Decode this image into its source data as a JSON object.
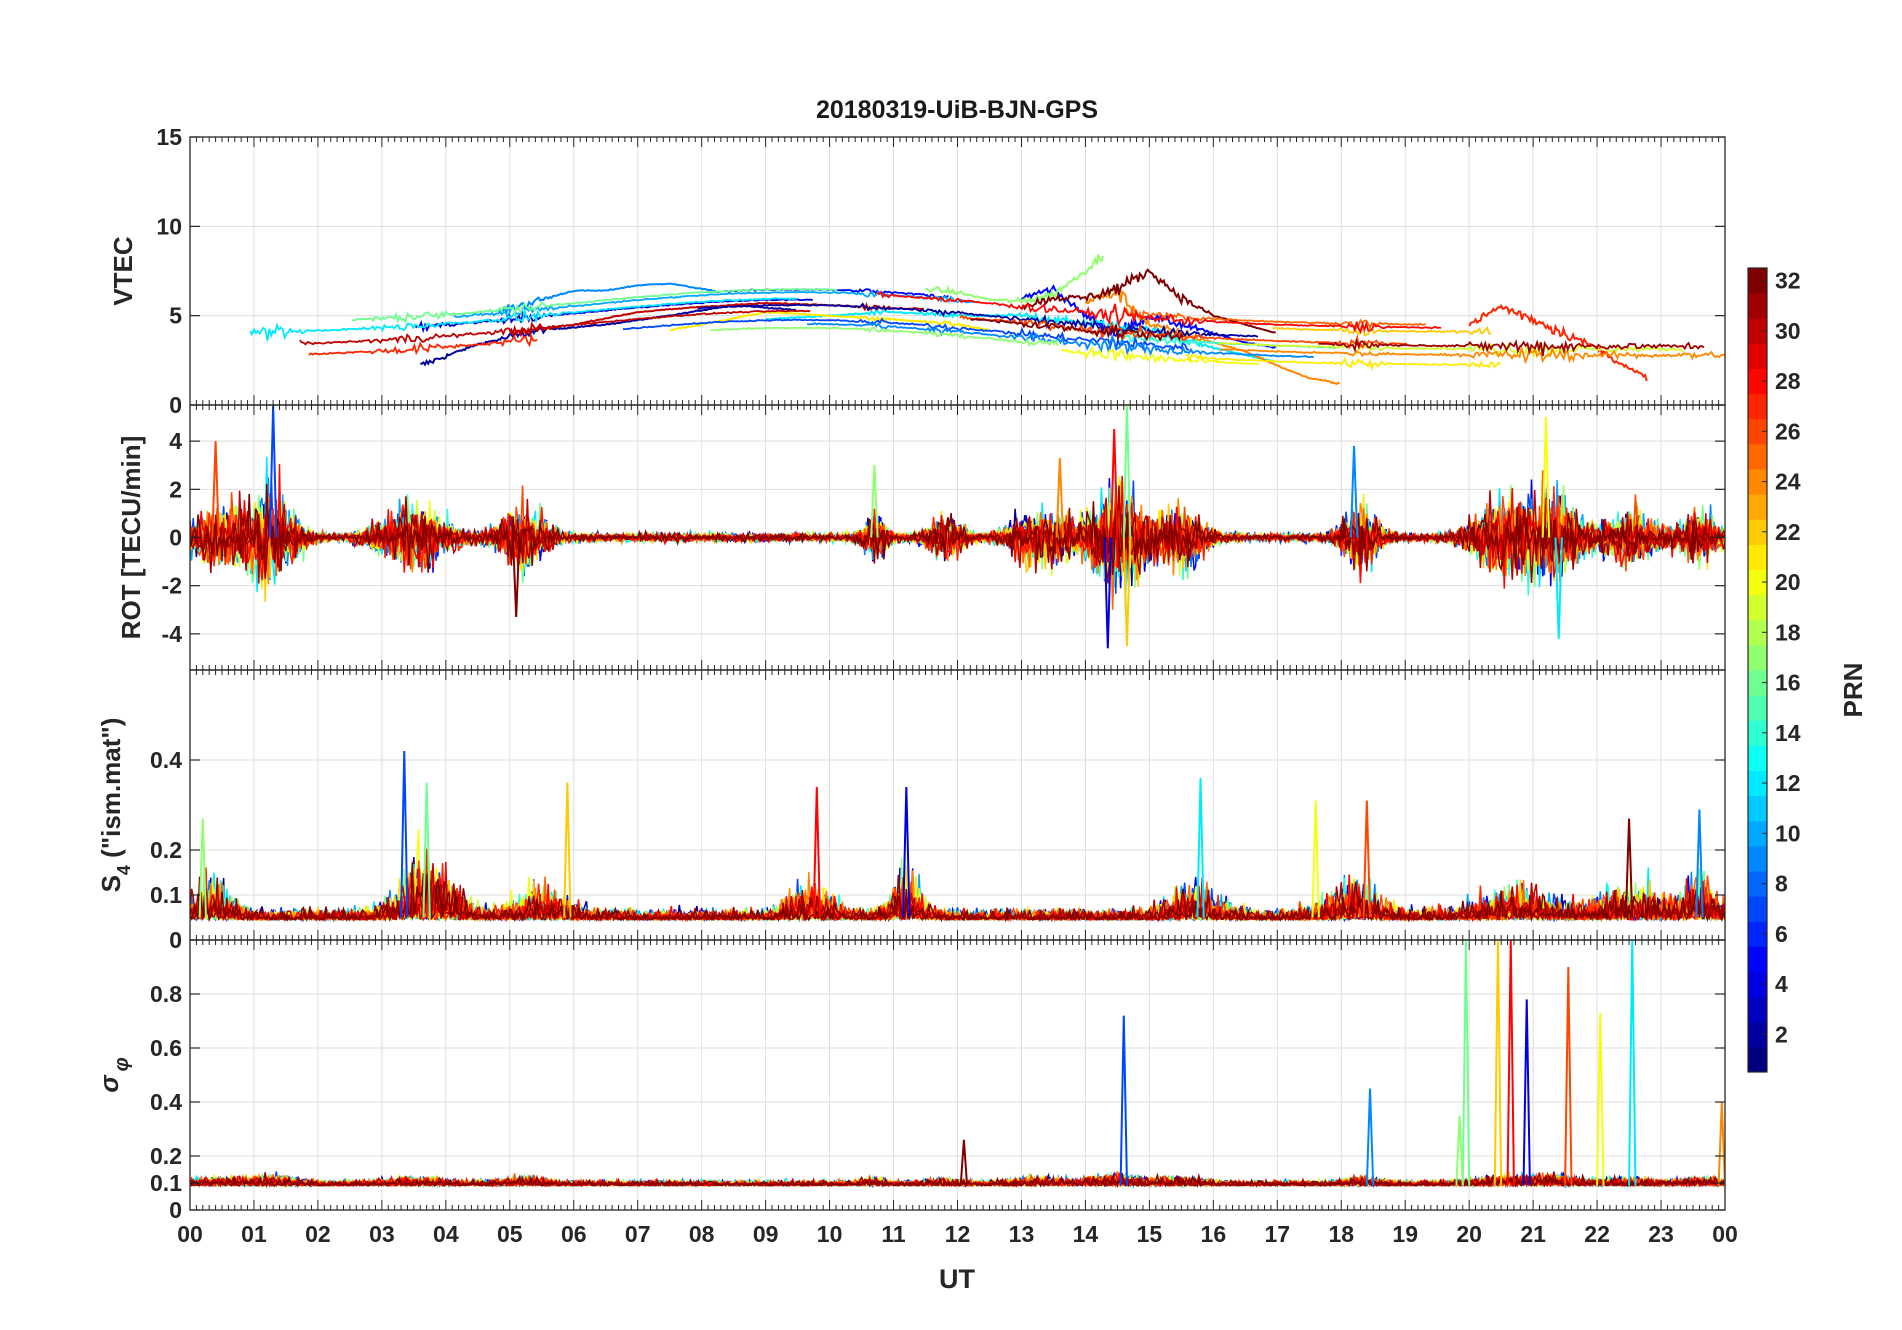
{
  "chart_data": [
    {
      "panel": "vtec",
      "type": "line",
      "title": "20180319-UiB-BJN-GPS",
      "ylabel": "VTEC",
      "ylim": [
        0,
        15
      ],
      "yticks": [
        0,
        5,
        10,
        15
      ],
      "grid": true,
      "series": [
        {
          "name": "PRN 2",
          "prn": 2,
          "x": [
            3.6,
            4.5,
            5.5,
            6.5,
            7.5,
            8.5,
            9.5
          ],
          "values": [
            2.2,
            3.4,
            4.2,
            4.5,
            5.0,
            5.6,
            5.3
          ]
        },
        {
          "name": "PRN 5",
          "prn": 5,
          "x": [
            13,
            13.5,
            14,
            14.5,
            15,
            15.5,
            16,
            16.5,
            17
          ],
          "values": [
            6.0,
            6.5,
            5.0,
            4.0,
            5.0,
            4.5,
            4.0,
            3.5,
            3.2
          ]
        },
        {
          "name": "PRN 9",
          "prn": 9,
          "x": [
            4.8,
            5.5,
            6,
            6.5,
            7,
            7.5,
            8,
            8.3
          ],
          "values": [
            5.2,
            5.9,
            6.4,
            6.4,
            6.7,
            6.8,
            6.5,
            6.3
          ]
        },
        {
          "name": "PRN 12",
          "prn": 12,
          "x": [
            9,
            10,
            11,
            12,
            13,
            14,
            15,
            16,
            17
          ],
          "values": [
            4.8,
            5.0,
            5.2,
            5.0,
            5.0,
            4.6,
            4.2,
            3.2,
            2.4
          ]
        },
        {
          "name": "PRN 17",
          "prn": 17,
          "x": [
            11.5,
            12,
            12.5,
            13,
            13.5,
            14,
            14.3
          ],
          "values": [
            6.5,
            6.3,
            5.9,
            5.8,
            6.2,
            7.5,
            8.5
          ]
        },
        {
          "name": "PRN 21",
          "prn": 21,
          "x": [
            7.5,
            8,
            9,
            10,
            11,
            12,
            12.5
          ],
          "values": [
            4.2,
            4.5,
            5.2,
            5.0,
            4.8,
            4.5,
            4.2
          ]
        },
        {
          "name": "PRN 24",
          "prn": 24,
          "x": [
            14,
            14.5,
            15,
            16,
            16.5,
            17,
            17.5,
            18
          ],
          "values": [
            5.8,
            6.3,
            4.5,
            3.5,
            3.0,
            2.2,
            1.5,
            1.2
          ]
        },
        {
          "name": "PRN 27",
          "prn": 27,
          "x": [
            20,
            20.5,
            21,
            21.5,
            22,
            22.5,
            22.8
          ],
          "values": [
            4.5,
            5.5,
            4.8,
            4.0,
            3.2,
            2.0,
            1.5
          ]
        },
        {
          "name": "PRN 30",
          "prn": 30,
          "x": [
            5,
            6,
            7,
            8,
            9,
            10,
            11,
            11.5
          ],
          "values": [
            4.0,
            4.5,
            5.2,
            5.5,
            5.7,
            5.6,
            5.4,
            5.4
          ]
        },
        {
          "name": "PRN 32",
          "prn": 32,
          "x": [
            13,
            13.5,
            14,
            14.5,
            15,
            15.5,
            16,
            17
          ],
          "values": [
            5.5,
            6.0,
            6.0,
            6.5,
            7.5,
            6.0,
            5.0,
            4.0
          ]
        }
      ],
      "colorbar": {
        "label": "PRN",
        "min": 1,
        "max": 32,
        "ticks": [
          2,
          4,
          6,
          8,
          10,
          12,
          14,
          16,
          18,
          20,
          22,
          24,
          26,
          28,
          30,
          32
        ]
      }
    },
    {
      "panel": "rot",
      "type": "line",
      "ylabel": "ROT [TECU/min]",
      "ylim": [
        -5.5,
        5.5
      ],
      "yticks": [
        -4,
        -2,
        0,
        2,
        4
      ],
      "grid": true,
      "peaks": [
        {
          "x": 1.3,
          "value": 5.5
        },
        {
          "x": 14.65,
          "value": 5.5
        },
        {
          "x": 14.65,
          "value": -4.5
        },
        {
          "x": 14.45,
          "value": 4.5
        },
        {
          "x": 14.35,
          "value": -4.6
        },
        {
          "x": 21.4,
          "value": -4.2
        },
        {
          "x": 21.2,
          "value": 5.0
        },
        {
          "x": 0.4,
          "value": 4.0
        },
        {
          "x": 5.1,
          "value": -3.3
        },
        {
          "x": 18.2,
          "value": 3.8
        },
        {
          "x": 10.7,
          "value": 3.0
        },
        {
          "x": 13.6,
          "value": 3.3
        }
      ]
    },
    {
      "panel": "s4",
      "type": "line",
      "ylabel": "S4 (\"ism.mat\")",
      "ylabel_main": "S",
      "ylabel_sub": "4",
      "ylabel_rest": " (\"ism.mat\")",
      "ylim": [
        0,
        0.6
      ],
      "yticks": [
        0,
        0.1,
        0.2,
        0.4
      ],
      "grid": true,
      "peaks": [
        {
          "x": 3.35,
          "value": 0.42
        },
        {
          "x": 3.7,
          "value": 0.35
        },
        {
          "x": 5.9,
          "value": 0.35
        },
        {
          "x": 9.8,
          "value": 0.34
        },
        {
          "x": 11.2,
          "value": 0.34
        },
        {
          "x": 15.8,
          "value": 0.36
        },
        {
          "x": 17.6,
          "value": 0.31
        },
        {
          "x": 18.4,
          "value": 0.31
        },
        {
          "x": 22.5,
          "value": 0.27
        },
        {
          "x": 23.6,
          "value": 0.29
        },
        {
          "x": 0.2,
          "value": 0.27
        }
      ]
    },
    {
      "panel": "sigma_phi",
      "type": "line",
      "ylabel": "σ φ",
      "ylim": [
        0,
        1
      ],
      "yticks": [
        0,
        0.1,
        0.2,
        0.4,
        0.6,
        0.8
      ],
      "grid": true,
      "xlabel": "UT",
      "xlim": [
        0,
        24
      ],
      "xtick_labels": [
        "00",
        "01",
        "02",
        "03",
        "04",
        "05",
        "06",
        "07",
        "08",
        "09",
        "10",
        "11",
        "12",
        "13",
        "14",
        "15",
        "16",
        "17",
        "18",
        "19",
        "20",
        "21",
        "22",
        "23",
        "00"
      ],
      "peaks": [
        {
          "x": 14.6,
          "value": 0.72
        },
        {
          "x": 19.95,
          "value": 1.0
        },
        {
          "x": 20.45,
          "value": 1.0
        },
        {
          "x": 20.65,
          "value": 1.0
        },
        {
          "x": 20.9,
          "value": 0.78
        },
        {
          "x": 22.55,
          "value": 1.0
        },
        {
          "x": 22.05,
          "value": 0.73
        },
        {
          "x": 21.55,
          "value": 0.9
        },
        {
          "x": 12.1,
          "value": 0.26
        },
        {
          "x": 18.45,
          "value": 0.45
        },
        {
          "x": 19.85,
          "value": 0.35
        },
        {
          "x": 23.95,
          "value": 0.4
        }
      ]
    }
  ]
}
